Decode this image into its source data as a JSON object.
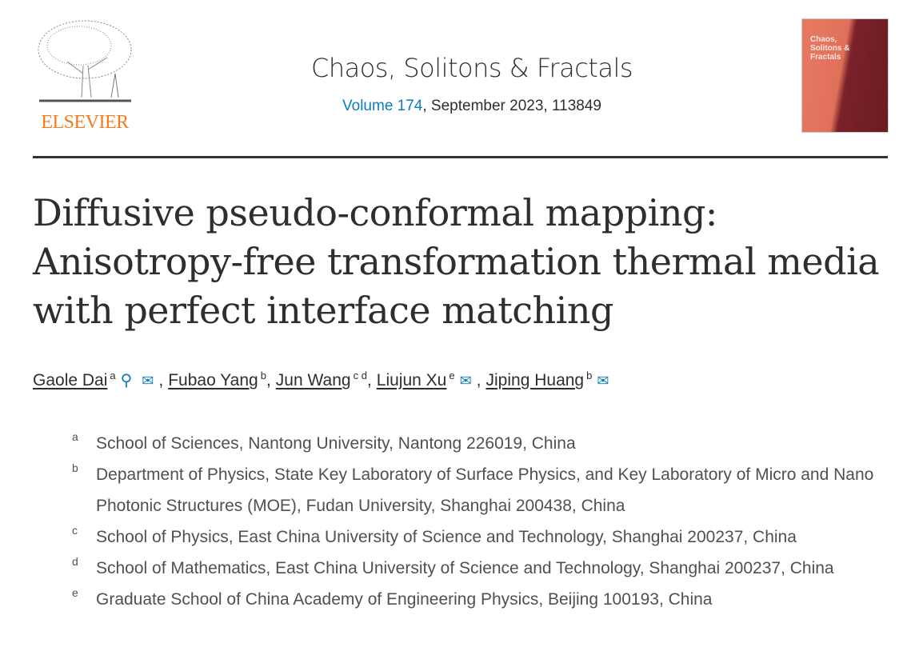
{
  "publisher": {
    "name": "ELSEVIER",
    "logo": "elsevier-tree-logo"
  },
  "journal": {
    "title": "Chaos, Solitons & Fractals",
    "volume_link": "Volume 174",
    "issue_info": ", September 2023, 113849",
    "cover_title": "Chaos, Solitons & Fractals"
  },
  "article": {
    "title": "Diffusive pseudo-conformal mapping: Anisotropy-free transformation thermal media with perfect interface matching"
  },
  "authors": [
    {
      "name": "Gaole Dai",
      "sup": "a",
      "icons": [
        "person-icon",
        "email-icon"
      ]
    },
    {
      "name": "Fubao Yang",
      "sup": "b",
      "icons": []
    },
    {
      "name": "Jun Wang",
      "sup": "c d",
      "icons": []
    },
    {
      "name": "Liujun Xu",
      "sup": "e",
      "icons": [
        "email-icon"
      ]
    },
    {
      "name": "Jiping Huang",
      "sup": "b",
      "icons": [
        "email-icon"
      ]
    }
  ],
  "separator": ",",
  "affiliations": [
    {
      "label": "a",
      "text": "School of Sciences, Nantong University, Nantong 226019, China"
    },
    {
      "label": "b",
      "text": "Department of Physics, State Key Laboratory of Surface Physics, and Key Laboratory of Micro and Nano Photonic Structures (MOE), Fudan University, Shanghai 200438, China"
    },
    {
      "label": "c",
      "text": "School of Physics, East China University of Science and Technology, Shanghai 200237, China"
    },
    {
      "label": "d",
      "text": "School of Mathematics, East China University of Science and Technology, Shanghai 200237, China"
    },
    {
      "label": "e",
      "text": "Graduate School of China Academy of Engineering Physics, Beijing 100193, China"
    }
  ],
  "colors": {
    "link": "#0c7dbb",
    "elsevier_orange": "#f47a1f"
  }
}
